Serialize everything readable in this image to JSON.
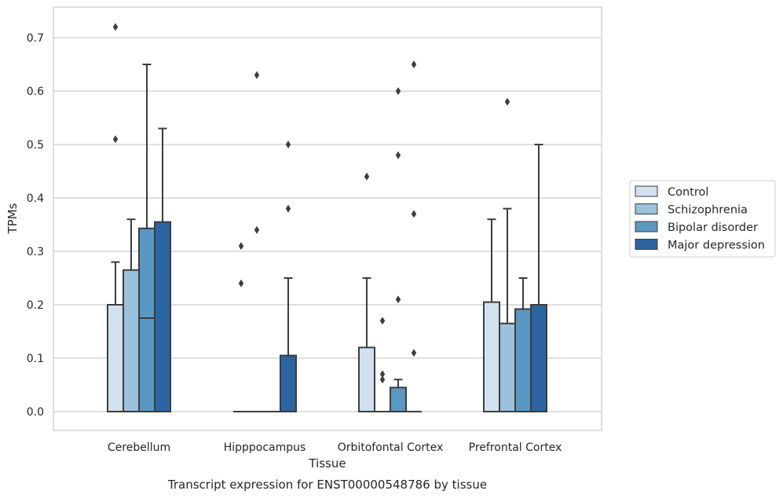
{
  "chart_data": {
    "type": "bar",
    "xlabel": "Tissue",
    "ylabel": "TPMs",
    "caption": "Transcript expression for ENST00000548786 by tissue",
    "categories": [
      "Cerebellum",
      "Hipppocampus",
      "Orbitofontal Cortex",
      "Prefrontal Cortex"
    ],
    "ylim": [
      -0.035,
      0.76
    ],
    "yticks": [
      0.0,
      0.1,
      0.2,
      0.3,
      0.4,
      0.5,
      0.6,
      0.7
    ],
    "ytick_labels": [
      "0.0",
      "0.1",
      "0.2",
      "0.3",
      "0.4",
      "0.5",
      "0.6",
      "0.7"
    ],
    "grid": true,
    "legend_position": "right",
    "series": [
      {
        "name": "Control",
        "color": "#d2e1ef",
        "boxes": [
          {
            "q1": 0.0,
            "median": 0.2,
            "q3": 0.2,
            "whisker_low": 0.0,
            "whisker_high": 0.28,
            "outliers": [
              0.72,
              0.51
            ]
          },
          {
            "q1": 0.0,
            "median": 0.0,
            "q3": 0.0,
            "whisker_low": 0.0,
            "whisker_high": 0.0,
            "outliers": [
              0.31,
              0.24
            ]
          },
          {
            "q1": 0.0,
            "median": 0.0,
            "q3": 0.12,
            "whisker_low": 0.0,
            "whisker_high": 0.25,
            "outliers": [
              0.44
            ]
          },
          {
            "q1": 0.0,
            "median": 0.0,
            "q3": 0.205,
            "whisker_low": 0.0,
            "whisker_high": 0.36,
            "outliers": []
          }
        ]
      },
      {
        "name": "Schizophrenia",
        "color": "#9bc1dc",
        "boxes": [
          {
            "q1": 0.0,
            "median": 0.0,
            "q3": 0.265,
            "whisker_low": 0.0,
            "whisker_high": 0.36,
            "outliers": []
          },
          {
            "q1": 0.0,
            "median": 0.0,
            "q3": 0.0,
            "whisker_low": 0.0,
            "whisker_high": 0.0,
            "outliers": [
              0.63,
              0.34
            ]
          },
          {
            "q1": 0.0,
            "median": 0.0,
            "q3": 0.0,
            "whisker_low": 0.0,
            "whisker_high": 0.0,
            "outliers": [
              0.17,
              0.07,
              0.06
            ]
          },
          {
            "q1": 0.0,
            "median": 0.0,
            "q3": 0.165,
            "whisker_low": 0.0,
            "whisker_high": 0.38,
            "outliers": [
              0.58
            ]
          }
        ]
      },
      {
        "name": "Bipolar disorder",
        "color": "#5898c3",
        "boxes": [
          {
            "q1": 0.0,
            "median": 0.175,
            "q3": 0.343,
            "whisker_low": 0.0,
            "whisker_high": 0.65,
            "outliers": []
          },
          {
            "q1": 0.0,
            "median": 0.0,
            "q3": 0.0,
            "whisker_low": 0.0,
            "whisker_high": 0.0,
            "outliers": []
          },
          {
            "q1": 0.0,
            "median": 0.0,
            "q3": 0.045,
            "whisker_low": 0.0,
            "whisker_high": 0.06,
            "outliers": [
              0.6,
              0.48,
              0.21
            ]
          },
          {
            "q1": 0.0,
            "median": 0.0,
            "q3": 0.192,
            "whisker_low": 0.0,
            "whisker_high": 0.25,
            "outliers": []
          }
        ]
      },
      {
        "name": "Major depression",
        "color": "#2a65a2",
        "boxes": [
          {
            "q1": 0.0,
            "median": 0.0,
            "q3": 0.355,
            "whisker_low": 0.0,
            "whisker_high": 0.53,
            "outliers": []
          },
          {
            "q1": 0.0,
            "median": 0.0,
            "q3": 0.105,
            "whisker_low": 0.0,
            "whisker_high": 0.25,
            "outliers": [
              0.5,
              0.38
            ]
          },
          {
            "q1": 0.0,
            "median": 0.0,
            "q3": 0.0,
            "whisker_low": 0.0,
            "whisker_high": 0.0,
            "outliers": [
              0.65,
              0.37,
              0.11
            ]
          },
          {
            "q1": 0.0,
            "median": 0.0,
            "q3": 0.2,
            "whisker_low": 0.0,
            "whisker_high": 0.5,
            "outliers": []
          }
        ]
      }
    ]
  }
}
